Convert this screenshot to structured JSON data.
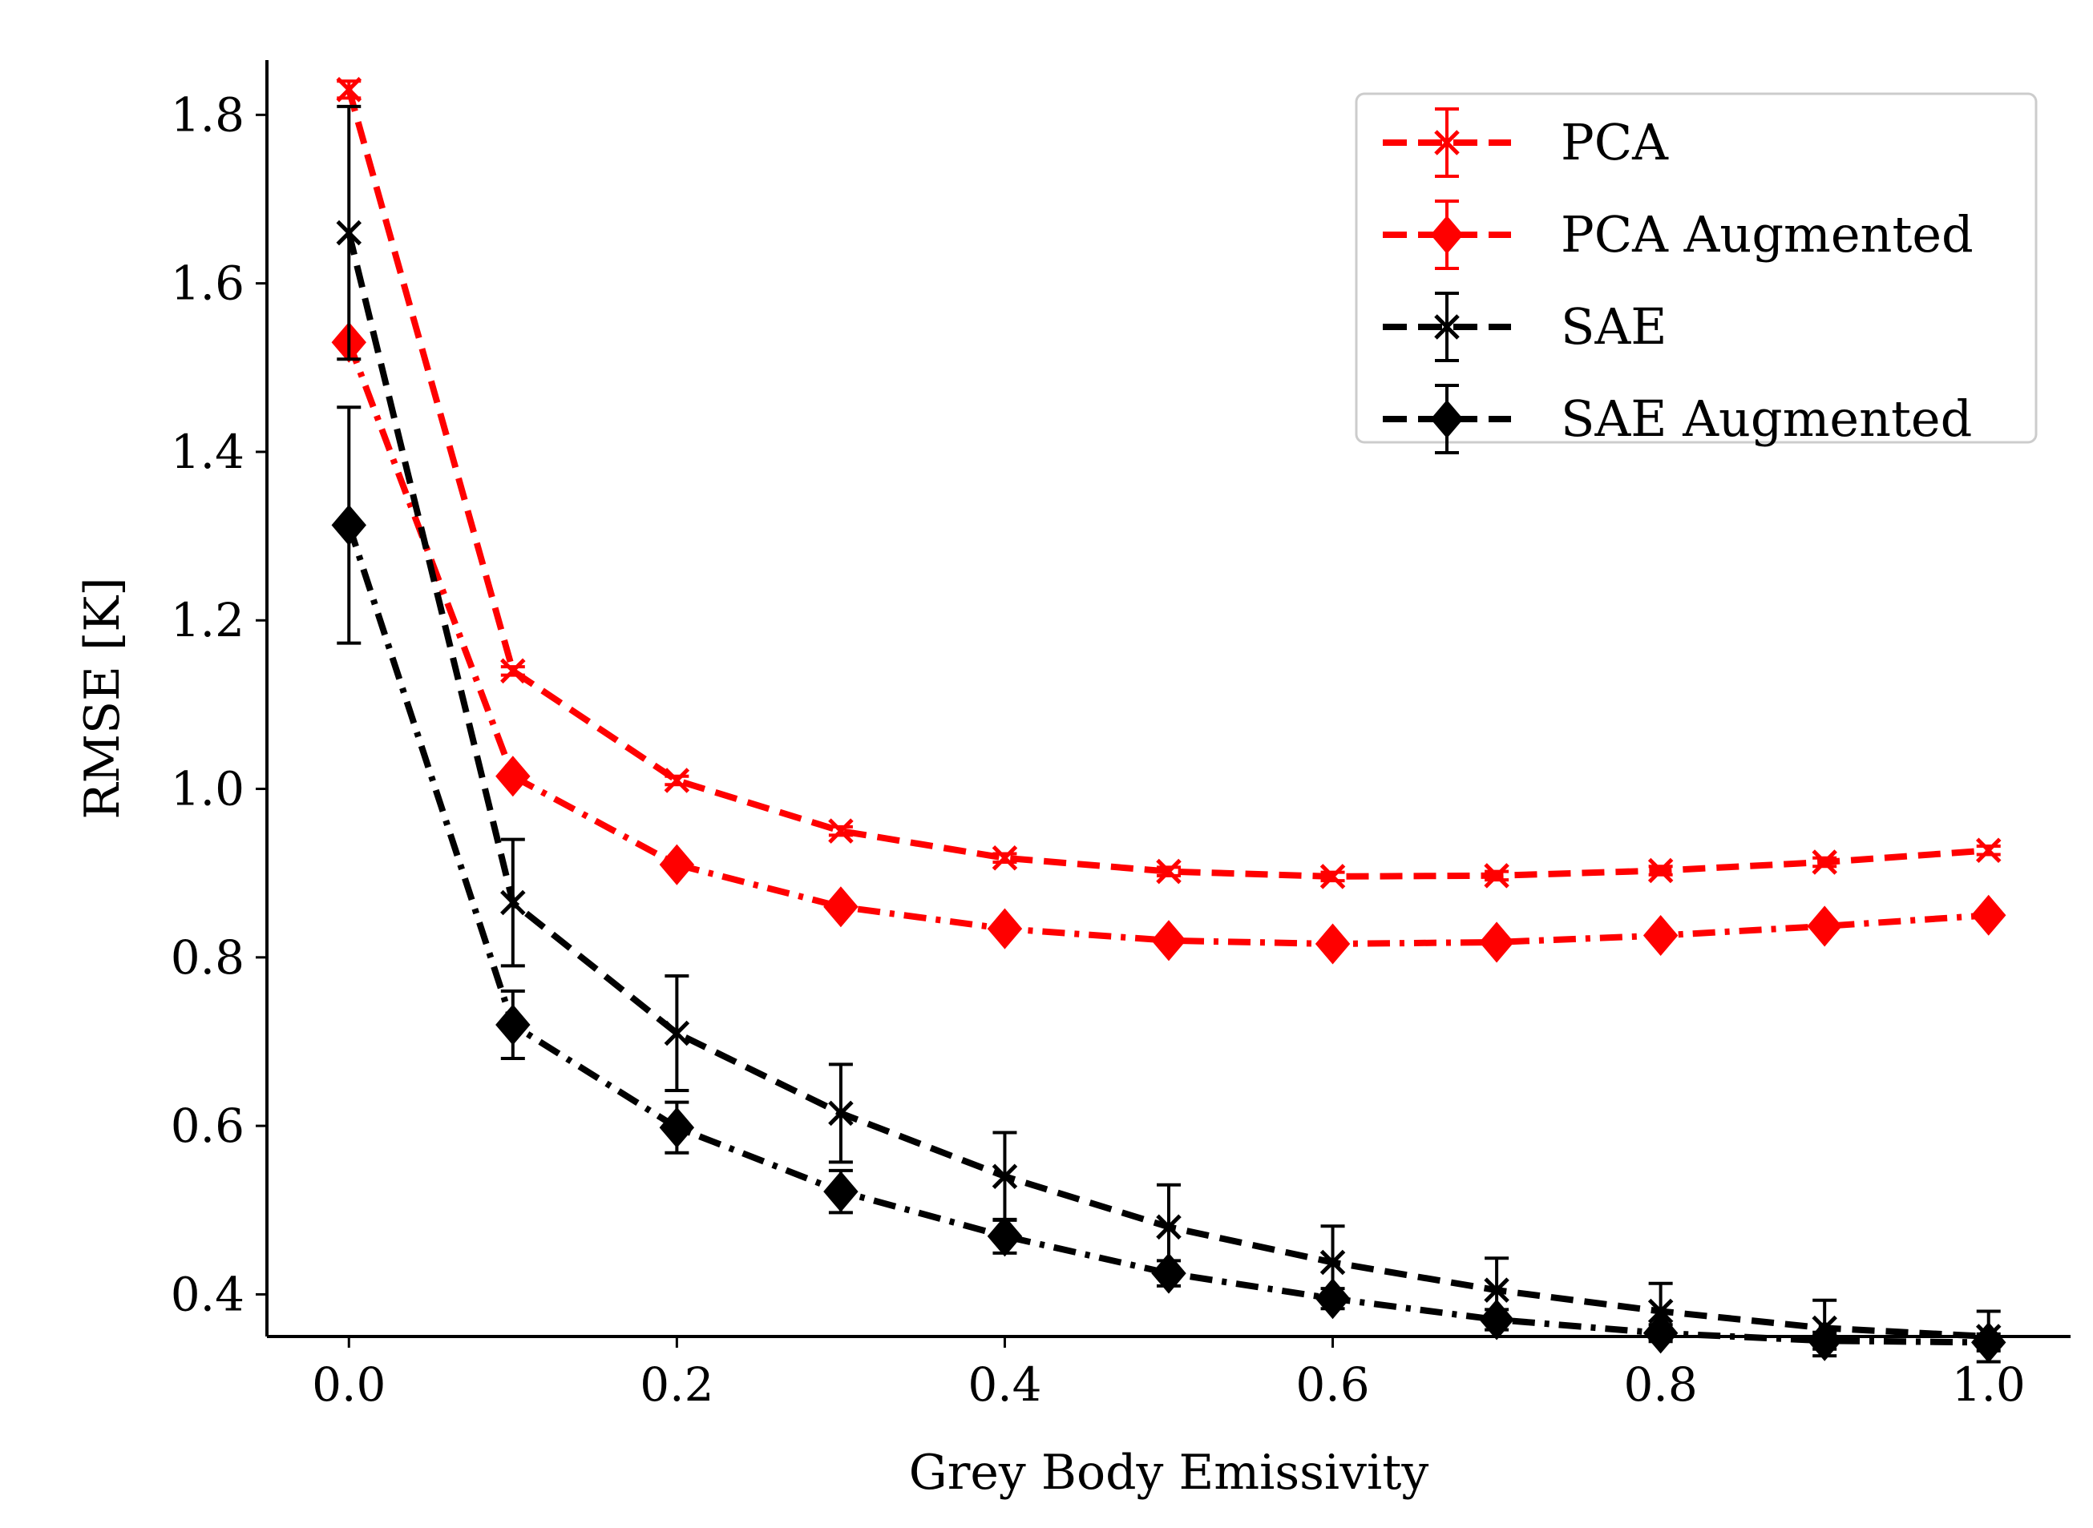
{
  "chart_data": {
    "type": "line",
    "title": "",
    "xlabel": "Grey Body Emissivity",
    "ylabel": "RMSE [K]",
    "xlim": [
      -0.05,
      1.05
    ],
    "ylim": [
      0.35,
      1.865
    ],
    "xticks": [
      0.0,
      0.2,
      0.4,
      0.6,
      0.8,
      1.0
    ],
    "xtick_labels": [
      "0.0",
      "0.2",
      "0.4",
      "0.6",
      "0.8",
      "1.0"
    ],
    "yticks": [
      0.4,
      0.6,
      0.8,
      1.0,
      1.2,
      1.4,
      1.6,
      1.8
    ],
    "ytick_labels": [
      "0.4",
      "0.6",
      "0.8",
      "1.0",
      "1.2",
      "1.4",
      "1.6",
      "1.8"
    ],
    "grid": false,
    "legend_position": "top-right",
    "x": [
      0.0,
      0.1,
      0.2,
      0.3,
      0.4,
      0.5,
      0.6,
      0.7,
      0.8,
      0.9,
      1.0
    ],
    "series": [
      {
        "name": "PCA",
        "color": "#ff0000",
        "linestyle": "dashed",
        "marker": "x",
        "values": [
          1.83,
          1.14,
          1.01,
          0.95,
          0.918,
          0.902,
          0.896,
          0.897,
          0.903,
          0.913,
          0.927
        ],
        "errors": [
          0.01,
          0.005,
          0.005,
          0.005,
          0.005,
          0.005,
          0.005,
          0.005,
          0.005,
          0.005,
          0.005
        ]
      },
      {
        "name": "PCA Augmented",
        "color": "#ff0000",
        "linestyle": "dashdot",
        "marker": "diamond",
        "values": [
          1.53,
          1.015,
          0.91,
          0.86,
          0.834,
          0.82,
          0.816,
          0.818,
          0.826,
          0.837,
          0.85
        ],
        "errors": [
          0.005,
          0.005,
          0.005,
          0.005,
          0.005,
          0.005,
          0.005,
          0.005,
          0.005,
          0.005,
          0.005
        ]
      },
      {
        "name": "SAE",
        "color": "#000000",
        "linestyle": "dashed",
        "marker": "x",
        "values": [
          1.66,
          0.865,
          0.71,
          0.615,
          0.54,
          0.48,
          0.438,
          0.405,
          0.38,
          0.36,
          0.35
        ],
        "errors": [
          0.15,
          0.075,
          0.068,
          0.058,
          0.052,
          0.05,
          0.043,
          0.038,
          0.033,
          0.033,
          0.03
        ]
      },
      {
        "name": "SAE Augmented",
        "color": "#000000",
        "linestyle": "dashdot",
        "marker": "diamond",
        "values": [
          1.313,
          0.72,
          0.598,
          0.522,
          0.469,
          0.425,
          0.395,
          0.37,
          0.354,
          0.345,
          0.343
        ],
        "errors": [
          0.14,
          0.04,
          0.03,
          0.025,
          0.02,
          0.015,
          0.012,
          0.012,
          0.01,
          0.01,
          0.01
        ]
      }
    ]
  }
}
